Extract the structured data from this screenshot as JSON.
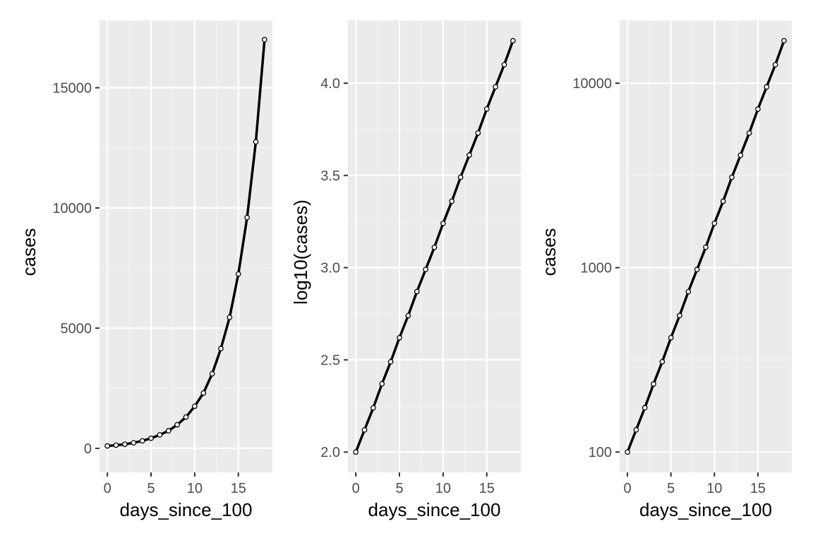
{
  "colors": {
    "panel_background": "#ebebeb",
    "grid_major": "#ffffff",
    "grid_minor": "#f5f5f5",
    "line": "#000000",
    "points": "#000000",
    "tick_label": "#4d4d4d",
    "axis_title": "#000000"
  },
  "chart_data": [
    {
      "type": "line",
      "xlabel": "days_since_100",
      "ylabel": "cases",
      "y_scale": "linear",
      "xlim": [
        -0.9,
        18.9
      ],
      "ylim": [
        -1000,
        17800
      ],
      "x_ticks": [
        0,
        5,
        10,
        15
      ],
      "x_tick_labels": [
        "0",
        "5",
        "10",
        "15"
      ],
      "y_ticks": [
        0,
        5000,
        10000,
        15000
      ],
      "y_tick_labels": [
        "0",
        "5000",
        "10000",
        "15000"
      ],
      "grid": true,
      "series": [
        {
          "x": [
            0,
            1,
            2,
            3,
            4,
            5,
            6,
            7,
            8,
            9,
            10,
            11,
            12,
            13,
            14,
            15,
            16,
            17,
            18
          ],
          "y": [
            100,
            130,
            170,
            230,
            310,
            420,
            560,
            730,
            980,
            1300,
            1750,
            2300,
            3100,
            4150,
            5450,
            7250,
            9600,
            12750,
            17000
          ]
        }
      ]
    },
    {
      "type": "line",
      "xlabel": "days_since_100",
      "ylabel": "log10(cases)",
      "y_scale": "linear",
      "xlim": [
        -0.9,
        18.9
      ],
      "ylim": [
        1.89,
        4.34
      ],
      "x_ticks": [
        0,
        5,
        10,
        15
      ],
      "x_tick_labels": [
        "0",
        "5",
        "10",
        "15"
      ],
      "y_ticks": [
        2.0,
        2.5,
        3.0,
        3.5,
        4.0
      ],
      "y_tick_labels": [
        "2.0",
        "2.5",
        "3.0",
        "3.5",
        "4.0"
      ],
      "grid": true,
      "series": [
        {
          "x": [
            0,
            1,
            2,
            3,
            4,
            5,
            6,
            7,
            8,
            9,
            10,
            11,
            12,
            13,
            14,
            15,
            16,
            17,
            18
          ],
          "y": [
            2.0,
            2.12,
            2.24,
            2.37,
            2.49,
            2.62,
            2.74,
            2.87,
            2.99,
            3.11,
            3.24,
            3.36,
            3.49,
            3.61,
            3.73,
            3.86,
            3.98,
            4.1,
            4.23
          ]
        }
      ]
    },
    {
      "type": "line",
      "xlabel": "days_since_100",
      "ylabel": "cases",
      "y_scale": "log10",
      "xlim": [
        -0.9,
        18.9
      ],
      "ylim": [
        77.6,
        21900
      ],
      "x_ticks": [
        0,
        5,
        10,
        15
      ],
      "x_tick_labels": [
        "0",
        "5",
        "10",
        "15"
      ],
      "y_ticks": [
        100,
        1000,
        10000
      ],
      "y_tick_labels": [
        "100",
        "1000",
        "10000"
      ],
      "grid": true,
      "series": [
        {
          "x": [
            0,
            1,
            2,
            3,
            4,
            5,
            6,
            7,
            8,
            9,
            10,
            11,
            12,
            13,
            14,
            15,
            16,
            17,
            18
          ],
          "y": [
            100,
            132,
            174,
            234,
            309,
            417,
            550,
            741,
            977,
            1290,
            1740,
            2290,
            3090,
            4070,
            5370,
            7240,
            9550,
            12600,
            17000
          ]
        }
      ]
    }
  ]
}
